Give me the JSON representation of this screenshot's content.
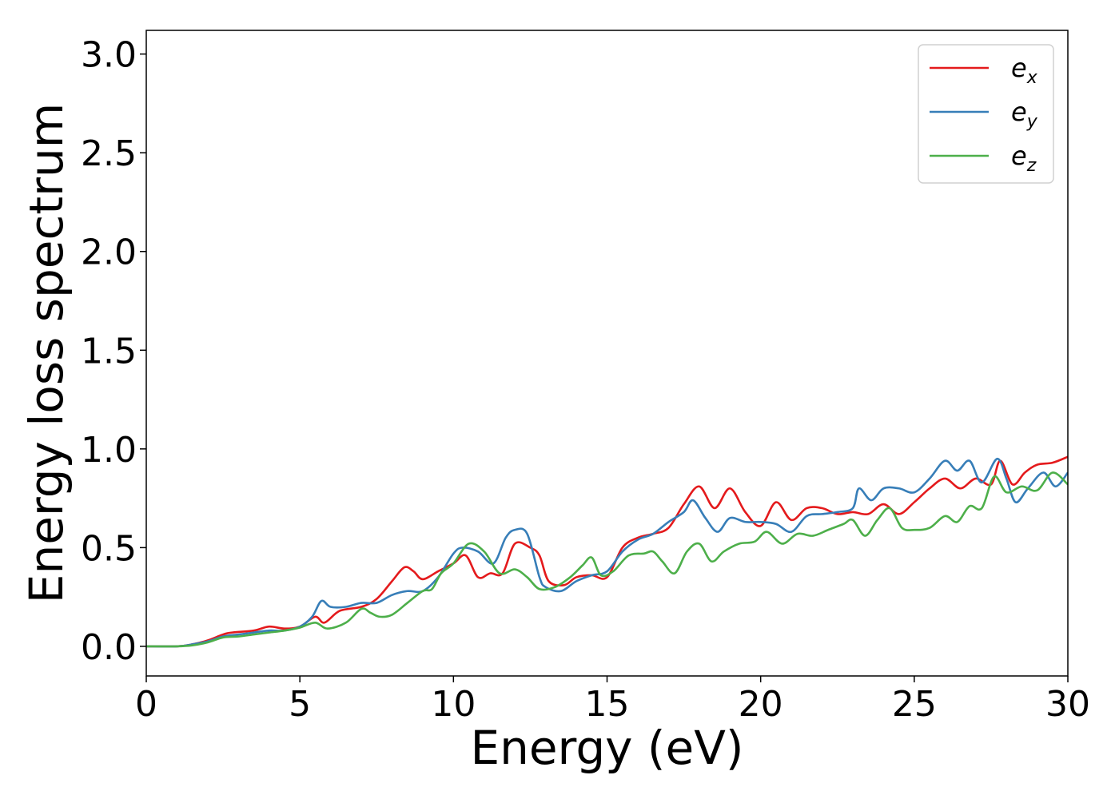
{
  "chart_data": {
    "type": "line",
    "title": "",
    "xlabel": "Energy (eV)",
    "ylabel": "Energy loss spectrum",
    "xlim": [
      0,
      30
    ],
    "ylim": [
      -0.15,
      3.12
    ],
    "xticks": [
      0,
      5,
      10,
      15,
      20,
      25,
      30
    ],
    "xtick_labels": [
      "0",
      "5",
      "10",
      "15",
      "20",
      "25",
      "30"
    ],
    "yticks": [
      0.0,
      0.5,
      1.0,
      1.5,
      2.0,
      2.5,
      3.0
    ],
    "ytick_labels": [
      "0.0",
      "0.5",
      "1.0",
      "1.5",
      "2.0",
      "2.5",
      "3.0"
    ],
    "grid": false,
    "legend_position": "top-right",
    "series": [
      {
        "name": "e_x",
        "label_base": "e",
        "label_sub": "x",
        "color": "#e41a1c",
        "points": [
          [
            0,
            0
          ],
          [
            1,
            0
          ],
          [
            1.5,
            0.01
          ],
          [
            2,
            0.03
          ],
          [
            2.5,
            0.06
          ],
          [
            2.8,
            0.07
          ],
          [
            3.5,
            0.08
          ],
          [
            4,
            0.1
          ],
          [
            4.5,
            0.09
          ],
          [
            5,
            0.1
          ],
          [
            5.5,
            0.15
          ],
          [
            5.8,
            0.12
          ],
          [
            6.3,
            0.18
          ],
          [
            7,
            0.2
          ],
          [
            7.5,
            0.24
          ],
          [
            8,
            0.33
          ],
          [
            8.4,
            0.4
          ],
          [
            8.7,
            0.38
          ],
          [
            9,
            0.34
          ],
          [
            9.5,
            0.38
          ],
          [
            10,
            0.42
          ],
          [
            10.4,
            0.46
          ],
          [
            10.8,
            0.35
          ],
          [
            11.2,
            0.37
          ],
          [
            11.6,
            0.37
          ],
          [
            12,
            0.52
          ],
          [
            12.5,
            0.5
          ],
          [
            12.8,
            0.46
          ],
          [
            13.1,
            0.33
          ],
          [
            13.6,
            0.31
          ],
          [
            14,
            0.35
          ],
          [
            14.5,
            0.36
          ],
          [
            15,
            0.35
          ],
          [
            15.5,
            0.5
          ],
          [
            16,
            0.55
          ],
          [
            16.5,
            0.57
          ],
          [
            17,
            0.6
          ],
          [
            17.5,
            0.72
          ],
          [
            18,
            0.81
          ],
          [
            18.5,
            0.7
          ],
          [
            19,
            0.8
          ],
          [
            19.5,
            0.68
          ],
          [
            20,
            0.61
          ],
          [
            20.5,
            0.73
          ],
          [
            21,
            0.64
          ],
          [
            21.5,
            0.7
          ],
          [
            22,
            0.7
          ],
          [
            22.5,
            0.67
          ],
          [
            23,
            0.68
          ],
          [
            23.5,
            0.67
          ],
          [
            24,
            0.72
          ],
          [
            24.5,
            0.67
          ],
          [
            25,
            0.73
          ],
          [
            25.5,
            0.8
          ],
          [
            26,
            0.85
          ],
          [
            26.5,
            0.8
          ],
          [
            27,
            0.85
          ],
          [
            27.5,
            0.82
          ],
          [
            27.8,
            0.94
          ],
          [
            28.2,
            0.82
          ],
          [
            28.6,
            0.88
          ],
          [
            29,
            0.92
          ],
          [
            29.5,
            0.93
          ],
          [
            30,
            0.96
          ]
        ]
      },
      {
        "name": "e_y",
        "label_base": "e",
        "label_sub": "y",
        "color": "#377eb8",
        "points": [
          [
            0,
            0
          ],
          [
            1,
            0
          ],
          [
            1.5,
            0.01
          ],
          [
            2,
            0.025
          ],
          [
            2.5,
            0.05
          ],
          [
            3,
            0.06
          ],
          [
            3.5,
            0.07
          ],
          [
            4,
            0.08
          ],
          [
            4.5,
            0.08
          ],
          [
            5,
            0.1
          ],
          [
            5.4,
            0.15
          ],
          [
            5.7,
            0.23
          ],
          [
            6,
            0.2
          ],
          [
            6.5,
            0.2
          ],
          [
            7,
            0.22
          ],
          [
            7.5,
            0.22
          ],
          [
            8,
            0.26
          ],
          [
            8.5,
            0.28
          ],
          [
            9,
            0.28
          ],
          [
            9.5,
            0.35
          ],
          [
            10,
            0.47
          ],
          [
            10.3,
            0.5
          ],
          [
            10.8,
            0.48
          ],
          [
            11.3,
            0.42
          ],
          [
            11.7,
            0.55
          ],
          [
            12,
            0.59
          ],
          [
            12.4,
            0.57
          ],
          [
            12.8,
            0.35
          ],
          [
            13,
            0.3
          ],
          [
            13.5,
            0.28
          ],
          [
            14,
            0.33
          ],
          [
            14.5,
            0.36
          ],
          [
            15,
            0.38
          ],
          [
            15.5,
            0.48
          ],
          [
            16,
            0.54
          ],
          [
            16.5,
            0.57
          ],
          [
            17,
            0.63
          ],
          [
            17.5,
            0.68
          ],
          [
            17.8,
            0.74
          ],
          [
            18.2,
            0.65
          ],
          [
            18.6,
            0.58
          ],
          [
            19,
            0.65
          ],
          [
            19.5,
            0.63
          ],
          [
            20,
            0.63
          ],
          [
            20.5,
            0.62
          ],
          [
            21,
            0.58
          ],
          [
            21.5,
            0.66
          ],
          [
            22,
            0.67
          ],
          [
            22.5,
            0.68
          ],
          [
            23,
            0.7
          ],
          [
            23.2,
            0.8
          ],
          [
            23.6,
            0.74
          ],
          [
            24,
            0.8
          ],
          [
            24.5,
            0.8
          ],
          [
            25,
            0.78
          ],
          [
            25.5,
            0.85
          ],
          [
            26,
            0.94
          ],
          [
            26.4,
            0.89
          ],
          [
            26.8,
            0.94
          ],
          [
            27.2,
            0.83
          ],
          [
            27.7,
            0.95
          ],
          [
            28,
            0.85
          ],
          [
            28.3,
            0.73
          ],
          [
            28.7,
            0.8
          ],
          [
            29.2,
            0.88
          ],
          [
            29.6,
            0.81
          ],
          [
            30,
            0.88
          ]
        ]
      },
      {
        "name": "e_z",
        "label_base": "e",
        "label_sub": "z",
        "color": "#4daf4a",
        "points": [
          [
            0,
            0
          ],
          [
            1,
            0
          ],
          [
            1.5,
            0.005
          ],
          [
            2,
            0.02
          ],
          [
            2.5,
            0.045
          ],
          [
            3,
            0.05
          ],
          [
            3.5,
            0.06
          ],
          [
            4,
            0.07
          ],
          [
            4.5,
            0.08
          ],
          [
            5,
            0.095
          ],
          [
            5.5,
            0.12
          ],
          [
            5.9,
            0.09
          ],
          [
            6.5,
            0.12
          ],
          [
            7,
            0.19
          ],
          [
            7.3,
            0.17
          ],
          [
            7.6,
            0.15
          ],
          [
            8,
            0.16
          ],
          [
            8.5,
            0.22
          ],
          [
            9,
            0.28
          ],
          [
            9.3,
            0.29
          ],
          [
            9.6,
            0.37
          ],
          [
            10,
            0.42
          ],
          [
            10.5,
            0.52
          ],
          [
            11,
            0.48
          ],
          [
            11.5,
            0.37
          ],
          [
            12,
            0.39
          ],
          [
            12.4,
            0.35
          ],
          [
            12.8,
            0.29
          ],
          [
            13.3,
            0.3
          ],
          [
            13.8,
            0.35
          ],
          [
            14.2,
            0.41
          ],
          [
            14.5,
            0.45
          ],
          [
            14.8,
            0.36
          ],
          [
            15.2,
            0.38
          ],
          [
            15.7,
            0.46
          ],
          [
            16.2,
            0.47
          ],
          [
            16.5,
            0.48
          ],
          [
            16.8,
            0.43
          ],
          [
            17.2,
            0.37
          ],
          [
            17.6,
            0.48
          ],
          [
            18,
            0.52
          ],
          [
            18.4,
            0.43
          ],
          [
            18.8,
            0.48
          ],
          [
            19.3,
            0.52
          ],
          [
            19.8,
            0.53
          ],
          [
            20.2,
            0.58
          ],
          [
            20.7,
            0.52
          ],
          [
            21.2,
            0.57
          ],
          [
            21.7,
            0.56
          ],
          [
            22.2,
            0.59
          ],
          [
            22.7,
            0.62
          ],
          [
            23,
            0.64
          ],
          [
            23.4,
            0.56
          ],
          [
            23.8,
            0.64
          ],
          [
            24.2,
            0.7
          ],
          [
            24.6,
            0.6
          ],
          [
            25,
            0.59
          ],
          [
            25.5,
            0.6
          ],
          [
            26,
            0.66
          ],
          [
            26.4,
            0.63
          ],
          [
            26.8,
            0.71
          ],
          [
            27.2,
            0.7
          ],
          [
            27.6,
            0.86
          ],
          [
            28,
            0.78
          ],
          [
            28.5,
            0.81
          ],
          [
            29,
            0.79
          ],
          [
            29.5,
            0.88
          ],
          [
            30,
            0.82
          ]
        ]
      }
    ]
  }
}
